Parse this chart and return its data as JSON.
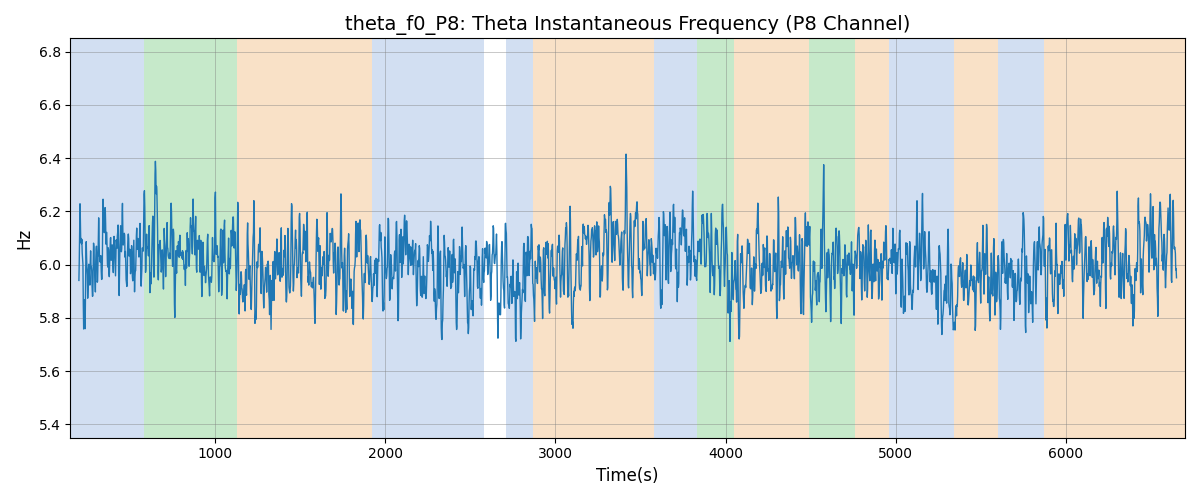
{
  "title": "theta_f0_P8: Theta Instantaneous Frequency (P8 Channel)",
  "xlabel": "Time(s)",
  "ylabel": "Hz",
  "ylim": [
    5.35,
    6.85
  ],
  "xlim": [
    150,
    6700
  ],
  "yticks": [
    5.4,
    5.6,
    5.8,
    6.0,
    6.2,
    6.4,
    6.6,
    6.8
  ],
  "xticks": [
    1000,
    2000,
    3000,
    4000,
    5000,
    6000
  ],
  "line_color": "#1f77b4",
  "line_width": 1.0,
  "title_fontsize": 14,
  "label_fontsize": 12,
  "seed": 42,
  "n_points": 3000,
  "t_start": 200,
  "t_end": 6650,
  "base_freq": 6.0,
  "bands": [
    {
      "start": 150,
      "end": 580,
      "color": "#aec6e8",
      "alpha": 0.55
    },
    {
      "start": 580,
      "end": 1130,
      "color": "#98d8a0",
      "alpha": 0.55
    },
    {
      "start": 1130,
      "end": 1920,
      "color": "#f5c99a",
      "alpha": 0.55
    },
    {
      "start": 1920,
      "end": 2580,
      "color": "#aec6e8",
      "alpha": 0.55
    },
    {
      "start": 2580,
      "end": 2710,
      "color": "#ffffff",
      "alpha": 0.0
    },
    {
      "start": 2710,
      "end": 2870,
      "color": "#aec6e8",
      "alpha": 0.55
    },
    {
      "start": 2870,
      "end": 3580,
      "color": "#f5c99a",
      "alpha": 0.55
    },
    {
      "start": 3580,
      "end": 3770,
      "color": "#aec6e8",
      "alpha": 0.55
    },
    {
      "start": 3770,
      "end": 3830,
      "color": "#aec6e8",
      "alpha": 0.55
    },
    {
      "start": 3830,
      "end": 4050,
      "color": "#98d8a0",
      "alpha": 0.55
    },
    {
      "start": 4050,
      "end": 4490,
      "color": "#f5c99a",
      "alpha": 0.55
    },
    {
      "start": 4490,
      "end": 4760,
      "color": "#98d8a0",
      "alpha": 0.55
    },
    {
      "start": 4760,
      "end": 4960,
      "color": "#f5c99a",
      "alpha": 0.55
    },
    {
      "start": 4960,
      "end": 5340,
      "color": "#aec6e8",
      "alpha": 0.55
    },
    {
      "start": 5340,
      "end": 5600,
      "color": "#f5c99a",
      "alpha": 0.55
    },
    {
      "start": 5600,
      "end": 5870,
      "color": "#aec6e8",
      "alpha": 0.55
    },
    {
      "start": 5870,
      "end": 6700,
      "color": "#f5c99a",
      "alpha": 0.55
    }
  ]
}
